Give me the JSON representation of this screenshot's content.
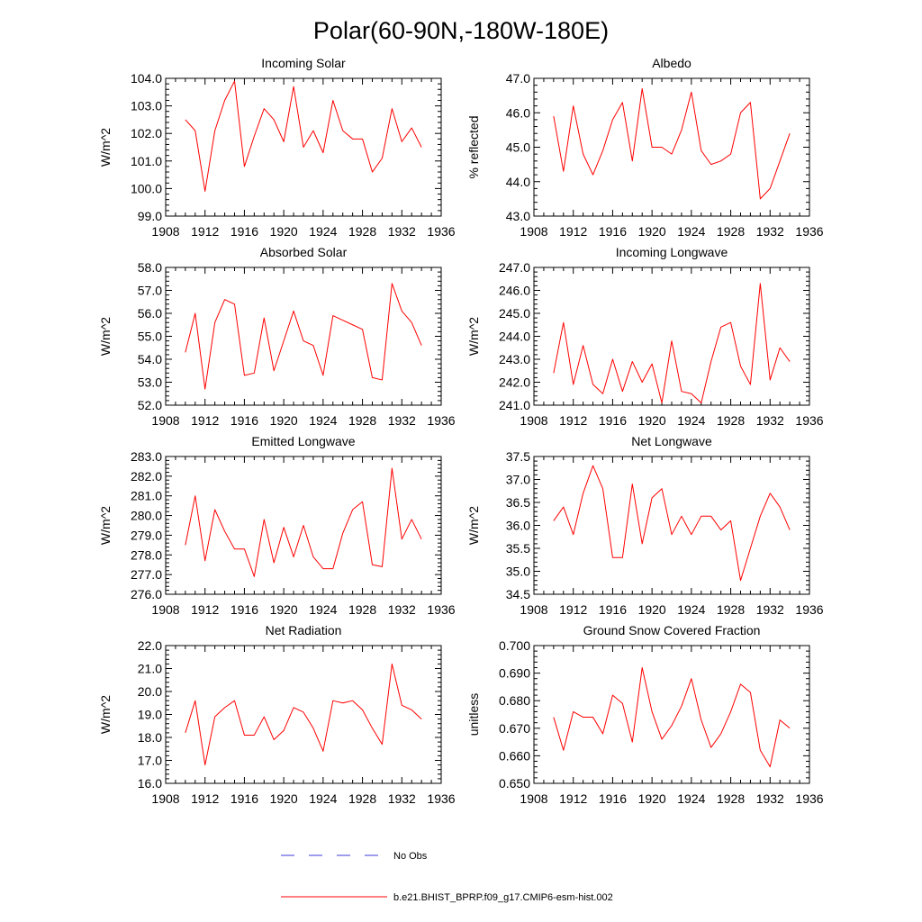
{
  "title": "Polar(60-90N,-180W-180E)",
  "colors": {
    "model": "#ff0000",
    "obs": "#3b3bd8",
    "axis": "#000000"
  },
  "legend": {
    "obs_label": "No Obs",
    "model_label": "b.e21.BHIST_BPRP.f09_g17.CMIP6-esm-hist.002"
  },
  "chart_data": [
    {
      "type": "line",
      "title": "Incoming Solar",
      "xlabel": "",
      "ylabel": "W/m^2",
      "xlim": [
        1908,
        1936
      ],
      "ylim": [
        99.0,
        104.0
      ],
      "decimals": 1,
      "xticks": [
        "1908",
        "1912",
        "1916",
        "1920",
        "1924",
        "1928",
        "1932",
        "1936"
      ],
      "yticks": [
        "99.0",
        "100.0",
        "101.0",
        "102.0",
        "103.0",
        "104.0"
      ],
      "x": [
        1910,
        1911,
        1912,
        1913,
        1914,
        1915,
        1916,
        1917,
        1918,
        1919,
        1920,
        1921,
        1922,
        1923,
        1924,
        1925,
        1926,
        1927,
        1928,
        1929,
        1930,
        1931,
        1932,
        1933,
        1934
      ],
      "series": [
        {
          "name": "b.e21.BHIST_BPRP.f09_g17.CMIP6-esm-hist.002",
          "values": [
            102.5,
            102.1,
            99.9,
            102.1,
            103.2,
            103.9,
            100.8,
            101.9,
            102.9,
            102.5,
            101.7,
            103.7,
            101.5,
            102.1,
            101.3,
            103.2,
            102.1,
            101.8,
            101.8,
            100.6,
            101.1,
            102.9,
            101.7,
            102.2,
            101.5
          ]
        }
      ]
    },
    {
      "type": "line",
      "title": "Albedo",
      "xlabel": "",
      "ylabel": "% reflected",
      "xlim": [
        1908,
        1936
      ],
      "ylim": [
        43.0,
        47.0
      ],
      "decimals": 1,
      "xticks": [
        "1908",
        "1912",
        "1916",
        "1920",
        "1924",
        "1928",
        "1932",
        "1936"
      ],
      "yticks": [
        "43.0",
        "44.0",
        "45.0",
        "46.0",
        "47.0"
      ],
      "x": [
        1910,
        1911,
        1912,
        1913,
        1914,
        1915,
        1916,
        1917,
        1918,
        1919,
        1920,
        1921,
        1922,
        1923,
        1924,
        1925,
        1926,
        1927,
        1928,
        1929,
        1930,
        1931,
        1932,
        1933,
        1934
      ],
      "series": [
        {
          "name": "b.e21.BHIST_BPRP.f09_g17.CMIP6-esm-hist.002",
          "values": [
            45.9,
            44.3,
            46.2,
            44.8,
            44.2,
            44.9,
            45.8,
            46.3,
            44.6,
            46.7,
            45.0,
            45.0,
            44.8,
            45.5,
            46.6,
            44.9,
            44.5,
            44.6,
            44.8,
            46.0,
            46.3,
            43.5,
            43.8,
            44.6,
            45.4
          ]
        }
      ]
    },
    {
      "type": "line",
      "title": "Absorbed Solar",
      "xlabel": "",
      "ylabel": "W/m^2",
      "xlim": [
        1908,
        1936
      ],
      "ylim": [
        52.0,
        58.0
      ],
      "decimals": 1,
      "xticks": [
        "1908",
        "1912",
        "1916",
        "1920",
        "1924",
        "1928",
        "1932",
        "1936"
      ],
      "yticks": [
        "52.0",
        "53.0",
        "54.0",
        "55.0",
        "56.0",
        "57.0",
        "58.0"
      ],
      "x": [
        1910,
        1911,
        1912,
        1913,
        1914,
        1915,
        1916,
        1917,
        1918,
        1919,
        1920,
        1921,
        1922,
        1923,
        1924,
        1925,
        1926,
        1927,
        1928,
        1929,
        1930,
        1931,
        1932,
        1933,
        1934
      ],
      "series": [
        {
          "name": "b.e21.BHIST_BPRP.f09_g17.CMIP6-esm-hist.002",
          "values": [
            54.3,
            56.0,
            52.7,
            55.6,
            56.6,
            56.4,
            53.3,
            53.4,
            55.8,
            53.5,
            54.8,
            56.1,
            54.8,
            54.6,
            53.3,
            55.9,
            55.7,
            55.5,
            55.3,
            53.2,
            53.1,
            57.3,
            56.1,
            55.6,
            54.6
          ]
        }
      ]
    },
    {
      "type": "line",
      "title": "Incoming Longwave",
      "xlabel": "",
      "ylabel": "W/m^2",
      "xlim": [
        1908,
        1936
      ],
      "ylim": [
        241.0,
        247.0
      ],
      "decimals": 1,
      "xticks": [
        "1908",
        "1912",
        "1916",
        "1920",
        "1924",
        "1928",
        "1932",
        "1936"
      ],
      "yticks": [
        "241.0",
        "242.0",
        "243.0",
        "244.0",
        "245.0",
        "246.0",
        "247.0"
      ],
      "x": [
        1910,
        1911,
        1912,
        1913,
        1914,
        1915,
        1916,
        1917,
        1918,
        1919,
        1920,
        1921,
        1922,
        1923,
        1924,
        1925,
        1926,
        1927,
        1928,
        1929,
        1930,
        1931,
        1932,
        1933,
        1934
      ],
      "series": [
        {
          "name": "b.e21.BHIST_BPRP.f09_g17.CMIP6-esm-hist.002",
          "values": [
            242.4,
            244.6,
            241.9,
            243.6,
            241.9,
            241.5,
            243.0,
            241.6,
            242.9,
            242.0,
            242.8,
            241.1,
            243.8,
            241.6,
            241.5,
            241.1,
            242.9,
            244.4,
            244.6,
            242.7,
            241.9,
            246.3,
            242.1,
            243.5,
            242.9
          ]
        }
      ]
    },
    {
      "type": "line",
      "title": "Emitted Longwave",
      "xlabel": "",
      "ylabel": "W/m^2",
      "xlim": [
        1908,
        1936
      ],
      "ylim": [
        276.0,
        283.0
      ],
      "decimals": 1,
      "xticks": [
        "1908",
        "1912",
        "1916",
        "1920",
        "1924",
        "1928",
        "1932",
        "1936"
      ],
      "yticks": [
        "276.0",
        "277.0",
        "278.0",
        "279.0",
        "280.0",
        "281.0",
        "282.0",
        "283.0"
      ],
      "x": [
        1910,
        1911,
        1912,
        1913,
        1914,
        1915,
        1916,
        1917,
        1918,
        1919,
        1920,
        1921,
        1922,
        1923,
        1924,
        1925,
        1926,
        1927,
        1928,
        1929,
        1930,
        1931,
        1932,
        1933,
        1934
      ],
      "series": [
        {
          "name": "b.e21.BHIST_BPRP.f09_g17.CMIP6-esm-hist.002",
          "values": [
            278.5,
            281.0,
            277.7,
            280.3,
            279.2,
            278.3,
            278.3,
            276.9,
            279.8,
            277.6,
            279.4,
            277.9,
            279.5,
            277.9,
            277.3,
            277.3,
            279.1,
            280.3,
            280.7,
            277.5,
            277.4,
            282.4,
            278.8,
            279.8,
            278.8
          ]
        }
      ]
    },
    {
      "type": "line",
      "title": "Net Longwave",
      "xlabel": "",
      "ylabel": "W/m^2",
      "xlim": [
        1908,
        1936
      ],
      "ylim": [
        34.5,
        37.5
      ],
      "decimals": 1,
      "xticks": [
        "1908",
        "1912",
        "1916",
        "1920",
        "1924",
        "1928",
        "1932",
        "1936"
      ],
      "yticks": [
        "34.5",
        "35.0",
        "35.5",
        "36.0",
        "36.5",
        "37.0",
        "37.5"
      ],
      "x": [
        1910,
        1911,
        1912,
        1913,
        1914,
        1915,
        1916,
        1917,
        1918,
        1919,
        1920,
        1921,
        1922,
        1923,
        1924,
        1925,
        1926,
        1927,
        1928,
        1929,
        1930,
        1931,
        1932,
        1933,
        1934
      ],
      "series": [
        {
          "name": "b.e21.BHIST_BPRP.f09_g17.CMIP6-esm-hist.002",
          "values": [
            36.1,
            36.4,
            35.8,
            36.7,
            37.3,
            36.8,
            35.3,
            35.3,
            36.9,
            35.6,
            36.6,
            36.8,
            35.8,
            36.2,
            35.8,
            36.2,
            36.2,
            35.9,
            36.1,
            34.8,
            35.5,
            36.2,
            36.7,
            36.4,
            35.9
          ]
        }
      ]
    },
    {
      "type": "line",
      "title": "Net Radiation",
      "xlabel": "",
      "ylabel": "W/m^2",
      "xlim": [
        1908,
        1936
      ],
      "ylim": [
        16.0,
        22.0
      ],
      "decimals": 1,
      "xticks": [
        "1908",
        "1912",
        "1916",
        "1920",
        "1924",
        "1928",
        "1932",
        "1936"
      ],
      "yticks": [
        "16.0",
        "17.0",
        "18.0",
        "19.0",
        "20.0",
        "21.0",
        "22.0"
      ],
      "x": [
        1910,
        1911,
        1912,
        1913,
        1914,
        1915,
        1916,
        1917,
        1918,
        1919,
        1920,
        1921,
        1922,
        1923,
        1924,
        1925,
        1926,
        1927,
        1928,
        1929,
        1930,
        1931,
        1932,
        1933,
        1934
      ],
      "series": [
        {
          "name": "b.e21.BHIST_BPRP.f09_g17.CMIP6-esm-hist.002",
          "values": [
            18.2,
            19.6,
            16.8,
            18.9,
            19.3,
            19.6,
            18.1,
            18.1,
            18.9,
            17.9,
            18.3,
            19.3,
            19.1,
            18.4,
            17.4,
            19.6,
            19.5,
            19.6,
            19.2,
            18.4,
            17.7,
            21.2,
            19.4,
            19.2,
            18.8
          ]
        }
      ]
    },
    {
      "type": "line",
      "title": "Ground Snow Covered Fraction",
      "xlabel": "",
      "ylabel": "unitless",
      "xlim": [
        1908,
        1936
      ],
      "ylim": [
        0.65,
        0.7
      ],
      "decimals": 3,
      "xticks": [
        "1908",
        "1912",
        "1916",
        "1920",
        "1924",
        "1928",
        "1932",
        "1936"
      ],
      "yticks": [
        "0.650",
        "0.660",
        "0.670",
        "0.680",
        "0.690",
        "0.700"
      ],
      "x": [
        1910,
        1911,
        1912,
        1913,
        1914,
        1915,
        1916,
        1917,
        1918,
        1919,
        1920,
        1921,
        1922,
        1923,
        1924,
        1925,
        1926,
        1927,
        1928,
        1929,
        1930,
        1931,
        1932,
        1933,
        1934
      ],
      "series": [
        {
          "name": "b.e21.BHIST_BPRP.f09_g17.CMIP6-esm-hist.002",
          "values": [
            0.674,
            0.662,
            0.676,
            0.674,
            0.674,
            0.668,
            0.682,
            0.679,
            0.665,
            0.692,
            0.676,
            0.666,
            0.671,
            0.678,
            0.688,
            0.673,
            0.663,
            0.668,
            0.676,
            0.686,
            0.683,
            0.662,
            0.656,
            0.673,
            0.67
          ]
        }
      ]
    }
  ]
}
